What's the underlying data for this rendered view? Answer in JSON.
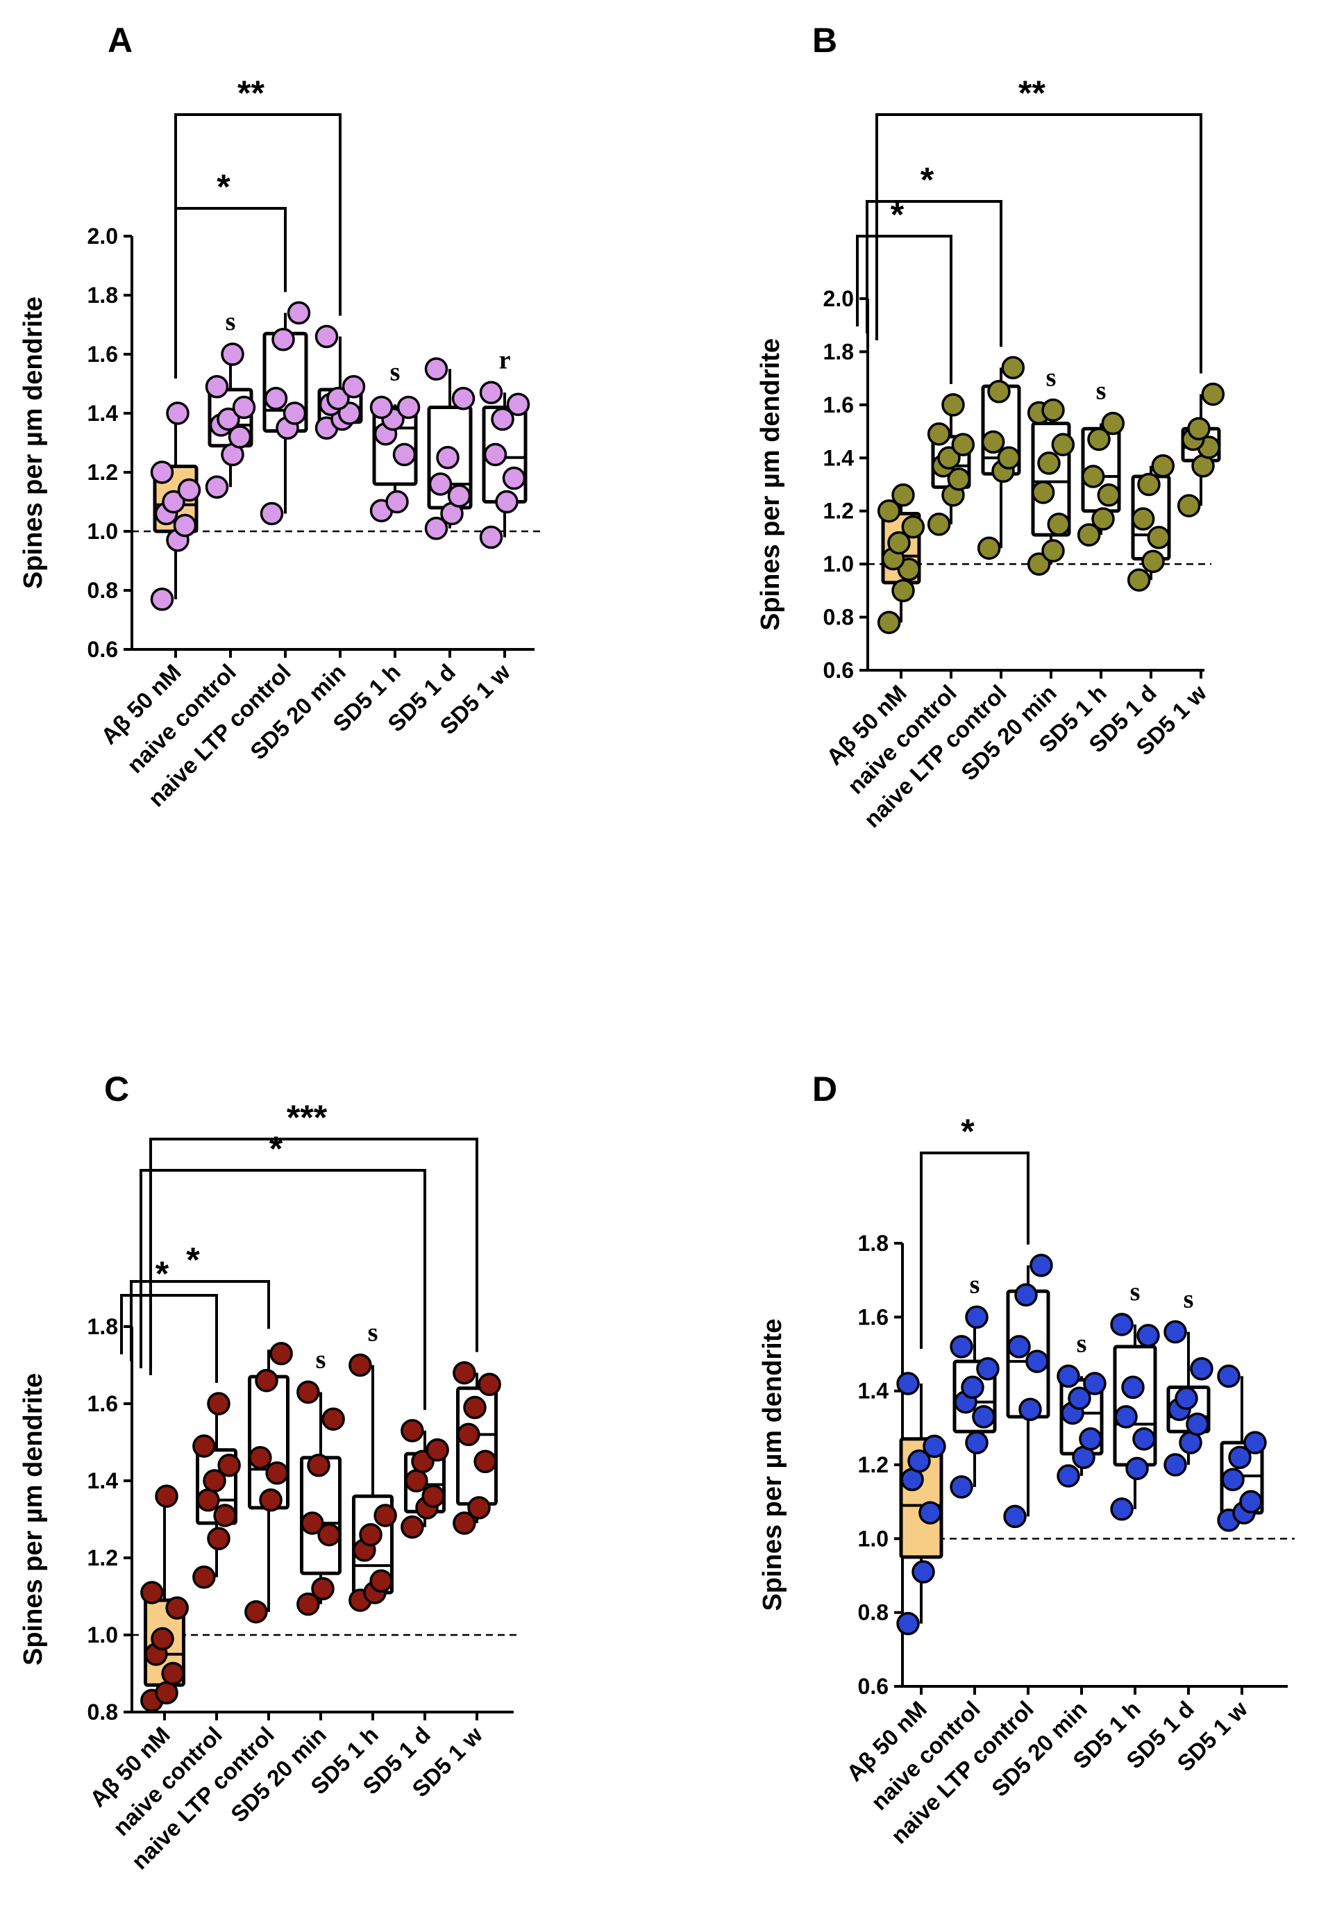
{
  "chart_data": [
    {
      "type": "box",
      "panel": "A",
      "ylabel": "Spines per µm dendrite",
      "ylim": [
        0.6,
        2.0
      ],
      "yticks": [
        "0.6",
        "0.8",
        "1.0",
        "1.2",
        "1.4",
        "1.6",
        "1.8",
        "2.0"
      ],
      "reference_line": 1.0,
      "categories": [
        "Aβ 50 nM",
        "naive control",
        "naive LTP control",
        "SD5 20 min",
        "SD5 1 h",
        "SD5 1 d",
        "SD5 1 w"
      ],
      "colors": {
        "point": "#d89ae8",
        "first_box_fill": "#f7cd85"
      },
      "boxes": [
        {
          "min": 0.77,
          "q1": 1.0,
          "median": 1.09,
          "q3": 1.22,
          "max": 1.4,
          "points": [
            0.77,
            0.97,
            1.02,
            1.06,
            1.1,
            1.14,
            1.2,
            1.4
          ],
          "annotation": ""
        },
        {
          "min": 1.15,
          "q1": 1.29,
          "median": 1.36,
          "q3": 1.48,
          "max": 1.6,
          "points": [
            1.15,
            1.26,
            1.32,
            1.36,
            1.38,
            1.42,
            1.49,
            1.6
          ],
          "annotation": "s"
        },
        {
          "min": 1.06,
          "q1": 1.34,
          "median": 1.41,
          "q3": 1.67,
          "max": 1.74,
          "points": [
            1.06,
            1.35,
            1.4,
            1.45,
            1.65,
            1.74
          ],
          "annotation": ""
        },
        {
          "min": 1.35,
          "q1": 1.37,
          "median": 1.42,
          "q3": 1.48,
          "max": 1.66,
          "points": [
            1.35,
            1.38,
            1.4,
            1.43,
            1.45,
            1.49,
            1.66
          ],
          "annotation": ""
        },
        {
          "min": 1.07,
          "q1": 1.16,
          "median": 1.35,
          "q3": 1.42,
          "max": 1.43,
          "points": [
            1.07,
            1.1,
            1.26,
            1.33,
            1.38,
            1.42,
            1.42
          ],
          "annotation": "s"
        },
        {
          "min": 1.01,
          "q1": 1.08,
          "median": 1.16,
          "q3": 1.42,
          "max": 1.55,
          "points": [
            1.01,
            1.06,
            1.12,
            1.16,
            1.25,
            1.45,
            1.55
          ],
          "annotation": ""
        },
        {
          "min": 0.98,
          "q1": 1.1,
          "median": 1.25,
          "q3": 1.42,
          "max": 1.47,
          "points": [
            0.98,
            1.1,
            1.18,
            1.26,
            1.38,
            1.43,
            1.47
          ],
          "annotation": "r"
        }
      ],
      "brackets": [
        {
          "from": 0,
          "to": 2,
          "label": "*"
        },
        {
          "from": 0,
          "to": 3,
          "label": "**"
        }
      ]
    },
    {
      "type": "box",
      "panel": "B",
      "ylabel": "Spines per µm dendrite",
      "ylim": [
        0.6,
        2.0
      ],
      "yticks": [
        "0.6",
        "0.8",
        "1.0",
        "1.2",
        "1.4",
        "1.6",
        "1.8",
        "2.0"
      ],
      "reference_line": 1.0,
      "categories": [
        "Aβ 50 nM",
        "naive control",
        "naive LTP control",
        "SD5 20 min",
        "SD5 1 h",
        "SD5 1 d",
        "SD5 1 w"
      ],
      "colors": {
        "point": "#8b8a2e",
        "first_box_fill": "#f7cd85"
      },
      "boxes": [
        {
          "min": 0.78,
          "q1": 0.93,
          "median": 1.03,
          "q3": 1.19,
          "max": 1.26,
          "points": [
            0.78,
            0.9,
            0.98,
            1.02,
            1.08,
            1.14,
            1.2,
            1.26
          ],
          "annotation": ""
        },
        {
          "min": 1.15,
          "q1": 1.29,
          "median": 1.37,
          "q3": 1.48,
          "max": 1.6,
          "points": [
            1.15,
            1.26,
            1.32,
            1.37,
            1.4,
            1.45,
            1.49,
            1.6
          ],
          "annotation": ""
        },
        {
          "min": 1.06,
          "q1": 1.34,
          "median": 1.4,
          "q3": 1.67,
          "max": 1.74,
          "points": [
            1.06,
            1.35,
            1.4,
            1.46,
            1.65,
            1.74
          ],
          "annotation": ""
        },
        {
          "min": 1.0,
          "q1": 1.11,
          "median": 1.31,
          "q3": 1.53,
          "max": 1.58,
          "points": [
            1.0,
            1.05,
            1.15,
            1.27,
            1.38,
            1.45,
            1.57,
            1.58
          ],
          "annotation": "s"
        },
        {
          "min": 1.11,
          "q1": 1.2,
          "median": 1.33,
          "q3": 1.51,
          "max": 1.53,
          "points": [
            1.11,
            1.17,
            1.26,
            1.33,
            1.47,
            1.53
          ],
          "annotation": "s"
        },
        {
          "min": 0.94,
          "q1": 1.02,
          "median": 1.11,
          "q3": 1.33,
          "max": 1.37,
          "points": [
            0.94,
            1.01,
            1.1,
            1.17,
            1.3,
            1.37
          ],
          "annotation": ""
        },
        {
          "min": 1.22,
          "q1": 1.39,
          "median": 1.44,
          "q3": 1.51,
          "max": 1.64,
          "points": [
            1.22,
            1.37,
            1.44,
            1.47,
            1.51,
            1.64
          ],
          "annotation": ""
        }
      ],
      "brackets": [
        {
          "from": 0,
          "to": 1,
          "label": "*"
        },
        {
          "from": 0,
          "to": 2,
          "label": "*"
        },
        {
          "from": 0,
          "to": 6,
          "label": "**"
        }
      ]
    },
    {
      "type": "box",
      "panel": "C",
      "ylabel": "Spines per µm dendrite",
      "ylim": [
        0.8,
        1.8
      ],
      "yticks": [
        "0.8",
        "1.0",
        "1.2",
        "1.4",
        "1.6",
        "1.8"
      ],
      "reference_line": 1.0,
      "categories": [
        "Aβ 50 nM",
        "naive control",
        "naive LTP control",
        "SD5 20 min",
        "SD5 1 h",
        "SD5 1 d",
        "SD5 1 w"
      ],
      "colors": {
        "point": "#8b1a10",
        "first_box_fill": "#f7cd85"
      },
      "boxes": [
        {
          "min": 0.83,
          "q1": 0.87,
          "median": 0.95,
          "q3": 1.09,
          "max": 1.36,
          "points": [
            0.83,
            0.85,
            0.9,
            0.95,
            0.99,
            1.07,
            1.11,
            1.36
          ],
          "annotation": ""
        },
        {
          "min": 1.15,
          "q1": 1.29,
          "median": 1.35,
          "q3": 1.48,
          "max": 1.6,
          "points": [
            1.15,
            1.25,
            1.31,
            1.35,
            1.4,
            1.44,
            1.49,
            1.6
          ],
          "annotation": ""
        },
        {
          "min": 1.06,
          "q1": 1.33,
          "median": 1.43,
          "q3": 1.67,
          "max": 1.74,
          "points": [
            1.06,
            1.35,
            1.42,
            1.46,
            1.66,
            1.73
          ],
          "annotation": ""
        },
        {
          "min": 1.08,
          "q1": 1.16,
          "median": 1.29,
          "q3": 1.46,
          "max": 1.63,
          "points": [
            1.08,
            1.12,
            1.26,
            1.29,
            1.44,
            1.56,
            1.63
          ],
          "annotation": "s"
        },
        {
          "min": 1.09,
          "q1": 1.11,
          "median": 1.18,
          "q3": 1.36,
          "max": 1.7,
          "points": [
            1.09,
            1.11,
            1.14,
            1.22,
            1.26,
            1.31,
            1.7
          ],
          "annotation": "s"
        },
        {
          "min": 1.28,
          "q1": 1.32,
          "median": 1.39,
          "q3": 1.47,
          "max": 1.53,
          "points": [
            1.28,
            1.33,
            1.36,
            1.4,
            1.45,
            1.48,
            1.53
          ],
          "annotation": ""
        },
        {
          "min": 1.29,
          "q1": 1.34,
          "median": 1.52,
          "q3": 1.64,
          "max": 1.68,
          "points": [
            1.29,
            1.33,
            1.45,
            1.52,
            1.59,
            1.65,
            1.68
          ],
          "annotation": ""
        }
      ],
      "brackets": [
        {
          "from": 0,
          "to": 1,
          "label": "*"
        },
        {
          "from": 0,
          "to": 2,
          "label": "*"
        },
        {
          "from": 0,
          "to": 5,
          "label": "*"
        },
        {
          "from": 0,
          "to": 6,
          "label": "***"
        }
      ]
    },
    {
      "type": "box",
      "panel": "D",
      "ylabel": "Spines per µm dendrite",
      "ylim": [
        0.6,
        1.8
      ],
      "yticks": [
        "0.6",
        "0.8",
        "1.0",
        "1.2",
        "1.4",
        "1.6",
        "1.8"
      ],
      "reference_line": 1.0,
      "categories": [
        "Aβ 50 nM",
        "naive control",
        "naive LTP control",
        "SD5 20 min",
        "SD5 1 h",
        "SD5 1 d",
        "SD5 1 w"
      ],
      "colors": {
        "point": "#2b46d4",
        "first_box_fill": "#f7cd85"
      },
      "boxes": [
        {
          "min": 0.77,
          "q1": 0.95,
          "median": 1.09,
          "q3": 1.27,
          "max": 1.42,
          "points": [
            0.77,
            0.91,
            1.07,
            1.16,
            1.21,
            1.25,
            1.42
          ],
          "annotation": ""
        },
        {
          "min": 1.14,
          "q1": 1.29,
          "median": 1.37,
          "q3": 1.48,
          "max": 1.6,
          "points": [
            1.14,
            1.26,
            1.33,
            1.37,
            1.41,
            1.46,
            1.52,
            1.6
          ],
          "annotation": "s"
        },
        {
          "min": 1.06,
          "q1": 1.33,
          "median": 1.48,
          "q3": 1.67,
          "max": 1.74,
          "points": [
            1.06,
            1.35,
            1.48,
            1.52,
            1.66,
            1.74
          ],
          "annotation": ""
        },
        {
          "min": 1.17,
          "q1": 1.23,
          "median": 1.34,
          "q3": 1.43,
          "max": 1.44,
          "points": [
            1.17,
            1.22,
            1.27,
            1.34,
            1.38,
            1.42,
            1.44
          ],
          "annotation": "s"
        },
        {
          "min": 1.08,
          "q1": 1.2,
          "median": 1.31,
          "q3": 1.52,
          "max": 1.58,
          "points": [
            1.08,
            1.19,
            1.27,
            1.33,
            1.41,
            1.55,
            1.58
          ],
          "annotation": "s"
        },
        {
          "min": 1.2,
          "q1": 1.29,
          "median": 1.33,
          "q3": 1.41,
          "max": 1.56,
          "points": [
            1.2,
            1.26,
            1.31,
            1.35,
            1.38,
            1.46,
            1.56
          ],
          "annotation": "s"
        },
        {
          "min": 1.05,
          "q1": 1.07,
          "median": 1.17,
          "q3": 1.26,
          "max": 1.44,
          "points": [
            1.05,
            1.07,
            1.1,
            1.16,
            1.22,
            1.26,
            1.44
          ],
          "annotation": ""
        }
      ],
      "brackets": [
        {
          "from": 0,
          "to": 2,
          "label": "*"
        }
      ]
    }
  ]
}
